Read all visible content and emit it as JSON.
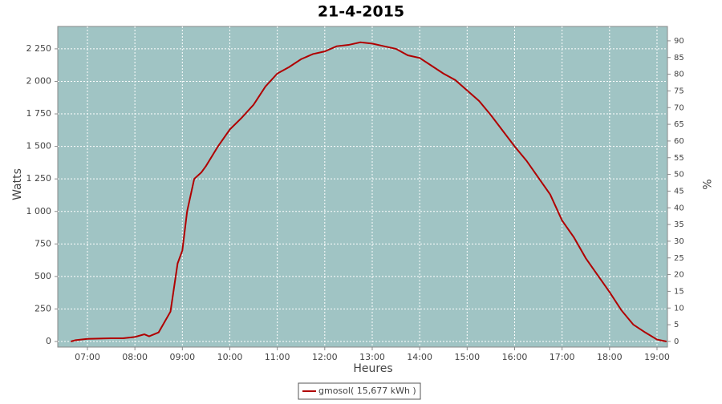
{
  "chart_data": {
    "type": "line",
    "title": "21-4-2015",
    "x_label": "Heures",
    "y_label": "Watts",
    "y2_label": "%",
    "x": [
      6.65,
      6.75,
      7.0,
      7.5,
      7.75,
      8.0,
      8.2,
      8.3,
      8.5,
      8.75,
      8.9,
      9.0,
      9.1,
      9.25,
      9.4,
      9.5,
      9.75,
      10.0,
      10.25,
      10.5,
      10.75,
      11.0,
      11.25,
      11.5,
      11.75,
      12.0,
      12.25,
      12.5,
      12.75,
      13.0,
      13.25,
      13.5,
      13.75,
      14.0,
      14.25,
      14.5,
      14.75,
      15.0,
      15.25,
      15.5,
      15.75,
      16.0,
      16.25,
      16.5,
      16.75,
      17.0,
      17.25,
      17.5,
      17.75,
      18.0,
      18.25,
      18.5,
      18.75,
      19.0,
      19.2
    ],
    "series": [
      {
        "name": "gmosol( 15,677 kWh )",
        "color": "#b00000",
        "values": [
          0,
          10,
          20,
          25,
          25,
          35,
          55,
          40,
          70,
          230,
          600,
          700,
          1000,
          1250,
          1300,
          1350,
          1500,
          1630,
          1720,
          1820,
          1960,
          2060,
          2110,
          2170,
          2210,
          2230,
          2270,
          2280,
          2300,
          2290,
          2270,
          2250,
          2200,
          2180,
          2120,
          2060,
          2010,
          1930,
          1850,
          1740,
          1620,
          1500,
          1390,
          1260,
          1130,
          930,
          800,
          640,
          510,
          380,
          240,
          130,
          70,
          15,
          0
        ]
      }
    ],
    "xlim": [
      6.375,
      19.22
    ],
    "xticks": [
      {
        "value": 7,
        "label": "07:00"
      },
      {
        "value": 8,
        "label": "08:00"
      },
      {
        "value": 9,
        "label": "09:00"
      },
      {
        "value": 10,
        "label": "10:00"
      },
      {
        "value": 11,
        "label": "11:00"
      },
      {
        "value": 12,
        "label": "12:00"
      },
      {
        "value": 13,
        "label": "13:00"
      },
      {
        "value": 14,
        "label": "14:00"
      },
      {
        "value": 15,
        "label": "15:00"
      },
      {
        "value": 16,
        "label": "16:00"
      },
      {
        "value": 17,
        "label": "17:00"
      },
      {
        "value": 18,
        "label": "18:00"
      },
      {
        "value": 19,
        "label": "19:00"
      }
    ],
    "ylim": [
      -43,
      2422
    ],
    "yticks": [
      0,
      250,
      500,
      750,
      {
        "value": 1000,
        "label": "1 000"
      },
      {
        "value": 1250,
        "label": "1 250"
      },
      {
        "value": 1500,
        "label": "1 500"
      },
      {
        "value": 1750,
        "label": "1 750"
      },
      {
        "value": 2000,
        "label": "2 000"
      },
      {
        "value": 2250,
        "label": "2 250"
      }
    ],
    "y2lim": [
      -1.7,
      94.3
    ],
    "y2ticks": [
      0,
      5,
      10,
      15,
      20,
      25,
      30,
      35,
      40,
      45,
      50,
      55,
      60,
      65,
      70,
      75,
      80,
      85,
      90
    ],
    "grid": true,
    "background": "#a0c4c4",
    "legend": "bottom"
  }
}
